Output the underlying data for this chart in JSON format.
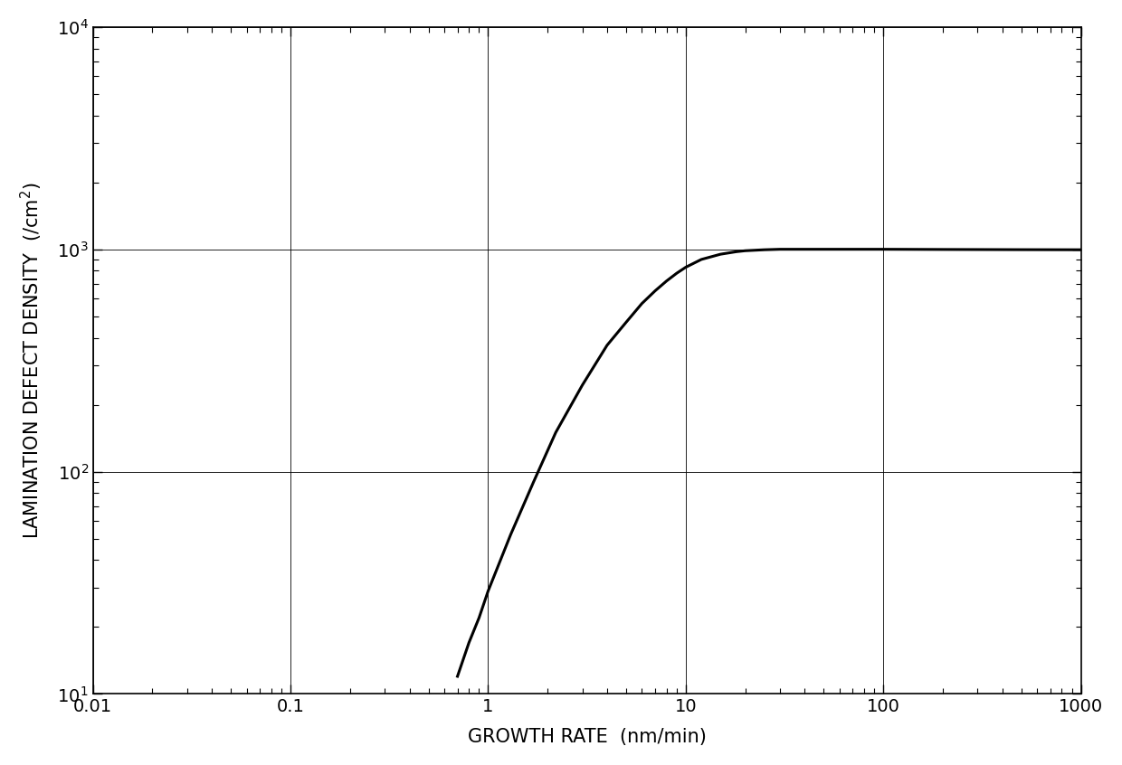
{
  "title": "",
  "xlabel": "GROWTH RATE  (nm/min)",
  "ylabel": "LAMINATION DEFECT DENSITY  (/cm$^2$)",
  "xlim": [
    0.01,
    1000
  ],
  "ylim": [
    10,
    10000
  ],
  "background_color": "#ffffff",
  "line_color": "#000000",
  "line_width": 2.2,
  "curve_x": [
    0.7,
    0.8,
    0.9,
    1.0,
    1.3,
    1.7,
    2.2,
    3.0,
    4.0,
    5.0,
    6.0,
    7.0,
    8.0,
    9.0,
    10.0,
    12.0,
    15.0,
    18.0,
    20.0,
    25.0,
    30.0,
    50.0,
    100.0,
    200.0,
    500.0,
    1000.0
  ],
  "curve_y": [
    12,
    17,
    22,
    29,
    52,
    90,
    150,
    245,
    370,
    470,
    570,
    650,
    720,
    780,
    830,
    900,
    950,
    975,
    985,
    995,
    1000,
    1000,
    1000,
    998,
    996,
    995
  ],
  "major_grid_color": "#000000",
  "major_grid_lw": 0.6,
  "minor_grid_color": "#999999",
  "minor_grid_lw": 0.3,
  "font_size_labels": 15,
  "font_size_ticks": 14
}
